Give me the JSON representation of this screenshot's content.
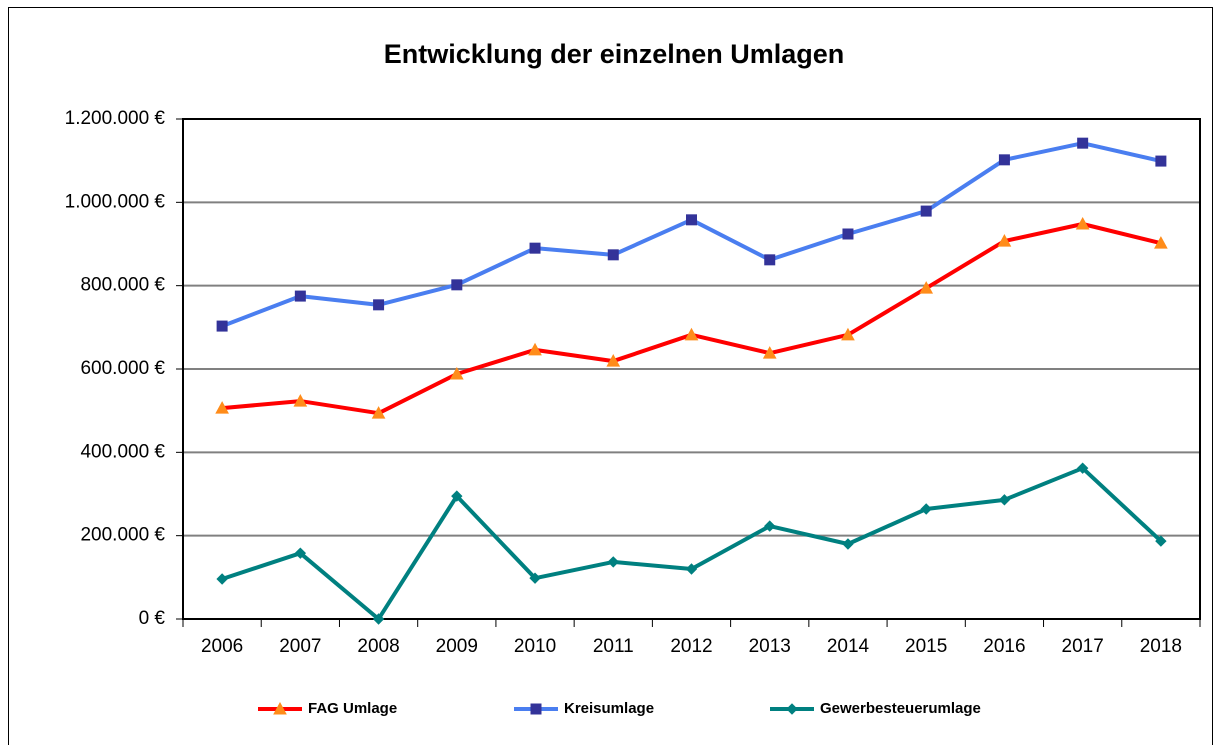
{
  "chart_data": {
    "type": "line",
    "title": "Entwicklung der einzelnen Umlagen",
    "categories": [
      "2006",
      "2007",
      "2008",
      "2009",
      "2010",
      "2011",
      "2012",
      "2013",
      "2014",
      "2015",
      "2016",
      "2017",
      "2018"
    ],
    "series": [
      {
        "name": "FAG Umlage",
        "color": "#ff0000",
        "marker": "triangle",
        "marker_color": "#ff8c1a",
        "values": [
          506000,
          523000,
          494000,
          588000,
          646000,
          619000,
          682000,
          638000,
          682000,
          794000,
          907000,
          948000,
          902000
        ]
      },
      {
        "name": "Kreisumlage",
        "color": "#4a7ef0",
        "marker": "square",
        "marker_color": "#333399",
        "values": [
          703000,
          775000,
          754000,
          802000,
          890000,
          874000,
          958000,
          862000,
          924000,
          979000,
          1102000,
          1142000,
          1099000
        ]
      },
      {
        "name": "Gewerbesteuerumlage",
        "color": "#008080",
        "marker": "diamond",
        "marker_color": "#008080",
        "values": [
          96000,
          158000,
          0,
          295000,
          98000,
          137000,
          120000,
          223000,
          180000,
          264000,
          286000,
          362000,
          187000
        ]
      }
    ],
    "ylim": [
      0,
      1200000
    ],
    "yticks": [
      {
        "value": 0,
        "label": "0 €"
      },
      {
        "value": 200000,
        "label": "200.000 €"
      },
      {
        "value": 400000,
        "label": "400.000 €"
      },
      {
        "value": 600000,
        "label": "600.000 €"
      },
      {
        "value": 800000,
        "label": "800.000 €"
      },
      {
        "value": 1000000,
        "label": "1.000.000 €"
      },
      {
        "value": 1200000,
        "label": "1.200.000 €"
      }
    ],
    "grid": true,
    "legend": "bottom"
  }
}
